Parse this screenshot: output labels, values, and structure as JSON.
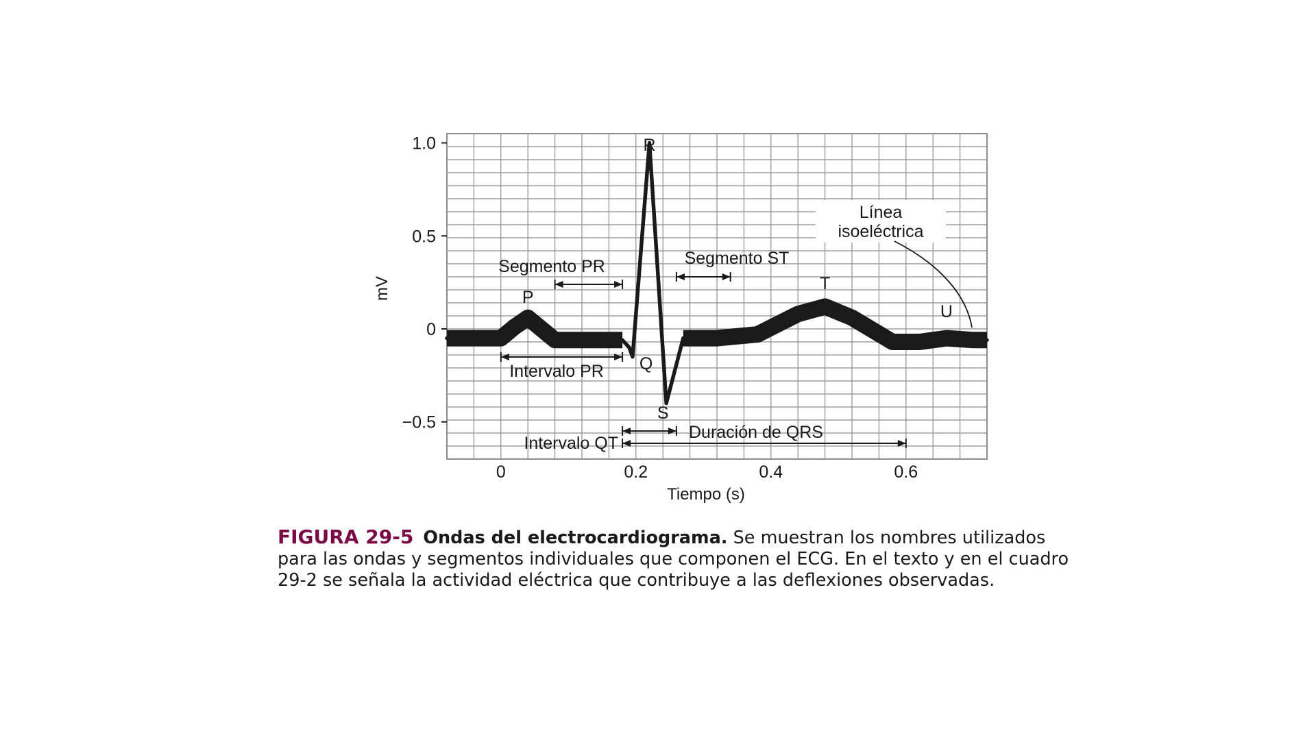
{
  "chart_data": {
    "type": "line",
    "title": "",
    "xlabel": "Tiempo (s)",
    "ylabel": "mV",
    "xlim": [
      -0.08,
      0.72
    ],
    "ylim": [
      -0.7,
      1.05
    ],
    "grid": true,
    "x_ticks": [
      {
        "value": 0,
        "label": "0"
      },
      {
        "value": 0.2,
        "label": "0.2"
      },
      {
        "value": 0.4,
        "label": "0.4"
      },
      {
        "value": 0.6,
        "label": "0.6"
      }
    ],
    "y_ticks": [
      {
        "value": 1.0,
        "label": "1.0"
      },
      {
        "value": 0.5,
        "label": "0.5"
      },
      {
        "value": 0,
        "label": "0"
      },
      {
        "value": -0.5,
        "label": "−0.5"
      }
    ],
    "series": [
      {
        "x": [
          -0.08,
          0.0,
          0.02,
          0.04,
          0.06,
          0.08,
          0.18,
          0.19,
          0.195,
          0.22,
          0.245,
          0.27,
          0.32,
          0.38,
          0.44,
          0.48,
          0.52,
          0.58,
          0.62,
          0.66,
          0.7,
          0.72
        ],
        "y": [
          -0.05,
          -0.05,
          0.01,
          0.06,
          0.0,
          -0.06,
          -0.06,
          -0.1,
          -0.15,
          1.0,
          -0.4,
          -0.05,
          -0.05,
          -0.03,
          0.08,
          0.12,
          0.06,
          -0.07,
          -0.07,
          -0.05,
          -0.06,
          -0.06
        ]
      }
    ],
    "annotations": {
      "waves": [
        {
          "label": "P",
          "x": 0.04,
          "y": 0.06
        },
        {
          "label": "Q",
          "x": 0.195,
          "y": -0.15
        },
        {
          "label": "R",
          "x": 0.22,
          "y": 1.0
        },
        {
          "label": "S",
          "x": 0.245,
          "y": -0.4
        },
        {
          "label": "T",
          "x": 0.48,
          "y": 0.12
        },
        {
          "label": "U",
          "x": 0.66,
          "y": -0.05
        }
      ],
      "intervals": [
        {
          "label": "Segmento PR",
          "start": 0.08,
          "end": 0.18
        },
        {
          "label": "Segmento ST",
          "start": 0.26,
          "end": 0.34
        },
        {
          "label": "Intervalo PR",
          "start": 0.0,
          "end": 0.18
        },
        {
          "label": "Duración de QRS",
          "start": 0.18,
          "end": 0.26
        },
        {
          "label": "Intervalo QT",
          "start": 0.18,
          "end": 0.6
        }
      ],
      "isoelectric_label_lines": [
        "Línea",
        "isoeléctrica"
      ]
    }
  },
  "caption": {
    "figure_number": "FIGURA 29-5",
    "title": "Ondas del electrocardiograma.",
    "text": "Se muestran los nombres utilizados para las ondas y segmentos individuales que componen el ECG.  En el texto y en el cuadro 29-2 se señala la actividad eléctrica que contribuye a las deflexiones observadas."
  },
  "colors": {
    "grid": "#8c8c8c",
    "trace": "#1a1a1a",
    "figure_number": "#7a0a45"
  }
}
